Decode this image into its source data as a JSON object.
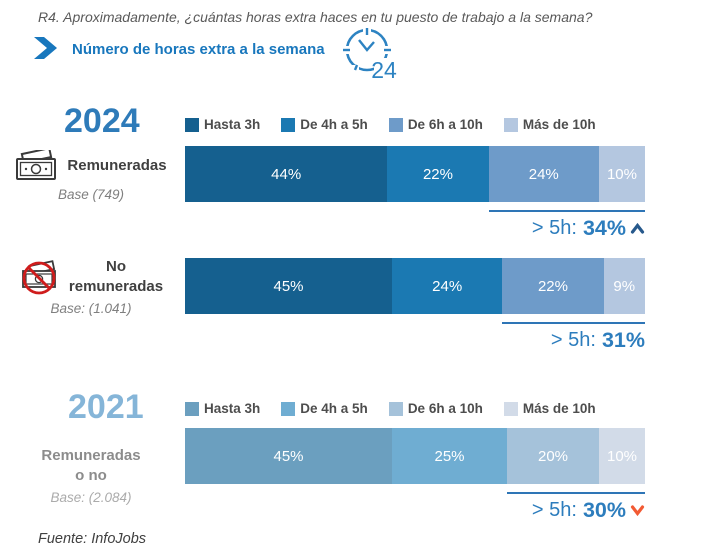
{
  "header": {
    "question": "R4. Aproximadamente, ¿cuántas horas extra haces en tu puesto de trabajo a la semana?",
    "subtitle": "Número de horas extra a la semana",
    "clock_number": "24"
  },
  "footer": {
    "source": "Fuente: InfoJobs"
  },
  "chart_data": {
    "type": "bar",
    "stacked": true,
    "orientation": "horizontal",
    "unit": "%",
    "categories": [
      "Hasta 3h",
      "De 4h a 5h",
      "De 6h a 10h",
      "Más de 10h"
    ],
    "groups": [
      {
        "year": "2024",
        "year_color": "#2e7bb9",
        "segment_colors": [
          "#15608f",
          "#1b79b2",
          "#6e9bc9",
          "#b4c7e0"
        ],
        "rows": [
          {
            "label_lines": [
              "Remuneradas"
            ],
            "base": "Base (749)",
            "icon": "money",
            "values": [
              44,
              22,
              24,
              10
            ],
            "summary_label": "> 5h:",
            "summary_value": "34%",
            "trend": "up"
          },
          {
            "label_lines": [
              "No",
              "remuneradas"
            ],
            "base": "Base: (1.041)",
            "icon": "money-crossed",
            "values": [
              45,
              24,
              22,
              9
            ],
            "summary_label": "> 5h:",
            "summary_value": "31%",
            "trend": "none"
          }
        ]
      },
      {
        "year": "2021",
        "year_color": "#85b5d8",
        "segment_colors": [
          "#6b9fbf",
          "#6fadd2",
          "#a5c2da",
          "#d2dbe8"
        ],
        "rows": [
          {
            "label_lines": [
              "Remuneradas",
              "o no"
            ],
            "base": "Base: (2.084)",
            "icon": "none",
            "values": [
              45,
              25,
              20,
              10
            ],
            "summary_label": "> 5h:",
            "summary_value": "30%",
            "trend": "down"
          }
        ]
      }
    ],
    "trend_colors": {
      "up": "#27598c",
      "down": "#f25a33"
    },
    "summary_color": "#2d7dbd",
    "underline_color": "#2e75b6"
  }
}
